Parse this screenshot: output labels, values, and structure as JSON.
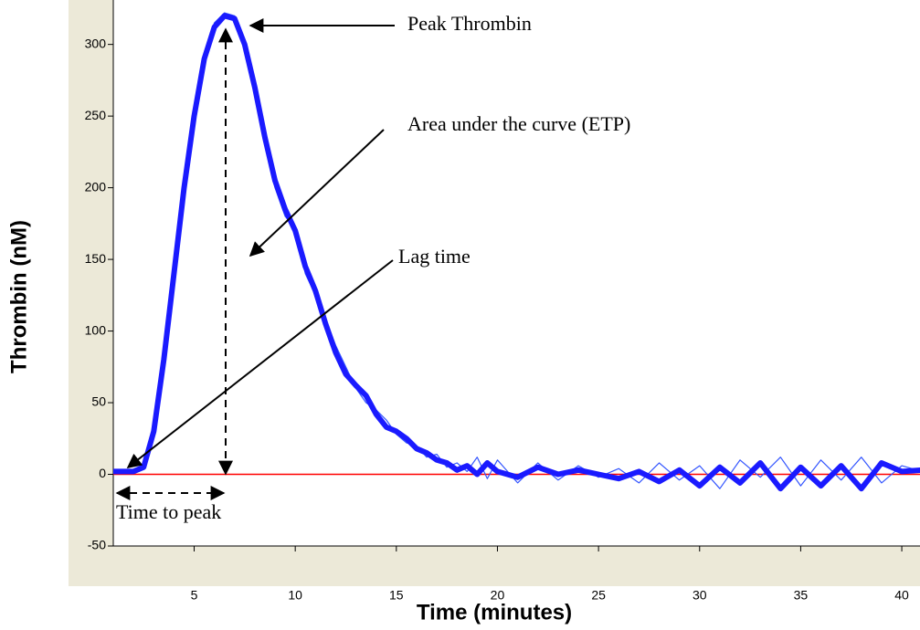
{
  "chart_data": {
    "type": "line",
    "xlabel": "Time (minutes)",
    "ylabel": "Thrombin (nM)",
    "x": [
      1,
      2,
      2.5,
      3,
      3.5,
      4,
      4.5,
      5,
      5.5,
      6,
      6.5,
      7,
      7.5,
      8,
      8.5,
      9,
      9.5,
      10,
      10.5,
      11,
      11.5,
      12,
      12.5,
      13,
      13.5,
      14,
      14.5,
      15,
      15.5,
      16,
      16.5,
      17,
      17.5,
      18,
      18.5,
      19,
      19.5,
      20,
      21,
      22,
      23,
      24,
      25,
      26,
      27,
      28,
      29,
      30,
      31,
      32,
      33,
      34,
      35,
      36,
      37,
      38,
      39,
      40,
      41
    ],
    "series": [
      {
        "color": "#1a1aff",
        "width": 6,
        "values": [
          2,
          2,
          5,
          30,
          80,
          140,
          200,
          250,
          290,
          312,
          320,
          318,
          300,
          270,
          235,
          205,
          185,
          170,
          145,
          128,
          105,
          85,
          70,
          62,
          55,
          42,
          33,
          30,
          25,
          18,
          15,
          10,
          8,
          3,
          6,
          0,
          8,
          2,
          -2,
          5,
          0,
          3,
          0,
          -3,
          2,
          -5,
          3,
          -8,
          5,
          -6,
          8,
          -10,
          5,
          -8,
          6,
          -10,
          8,
          2,
          3
        ]
      },
      {
        "color": "#3355ff",
        "width": 1.2,
        "values": [
          3,
          1,
          8,
          35,
          85,
          145,
          205,
          255,
          292,
          315,
          322,
          320,
          303,
          268,
          230,
          200,
          180,
          172,
          140,
          125,
          108,
          90,
          75,
          60,
          50,
          45,
          38,
          28,
          22,
          20,
          12,
          14,
          5,
          8,
          2,
          12,
          -3,
          10,
          -6,
          8,
          -4,
          6,
          -2,
          4,
          -6,
          8,
          -4,
          6,
          -10,
          10,
          -2,
          12,
          -8,
          10,
          -4,
          12,
          -6,
          6,
          2
        ]
      }
    ],
    "ref_value": 0,
    "ref_color": "#ff0000",
    "xlim": [
      1,
      41
    ],
    "ylim": [
      -50,
      331
    ],
    "xticks": [
      5,
      10,
      15,
      20,
      25,
      30,
      35,
      40
    ],
    "yticks": [
      -50,
      0,
      50,
      100,
      150,
      200,
      250,
      300
    ],
    "annotations": [
      "Peak Thrombin",
      "Area under the curve (ETP)",
      "Lag time",
      "Time to peak"
    ]
  }
}
